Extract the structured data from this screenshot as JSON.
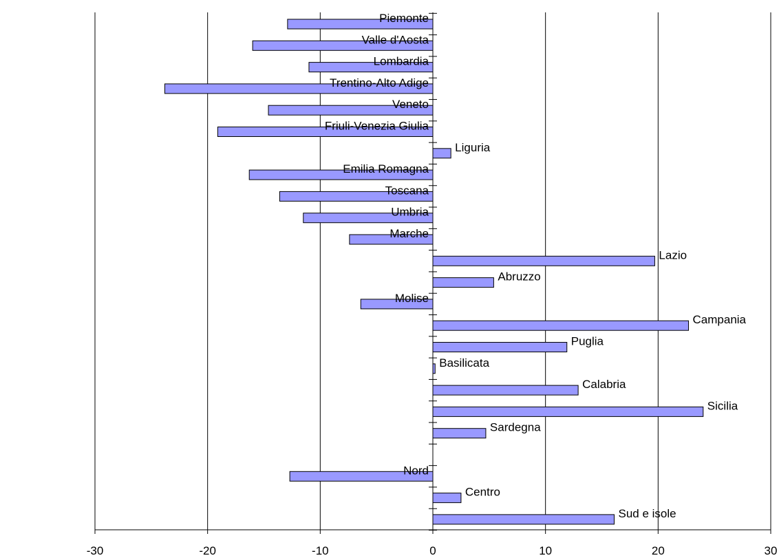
{
  "chart_data": {
    "type": "bar",
    "orientation": "horizontal",
    "title": "",
    "xlabel": "",
    "ylabel": "",
    "xlim": [
      -30,
      30
    ],
    "x_ticks": [
      -30,
      -20,
      -10,
      0,
      10,
      20,
      30
    ],
    "x_tick_labels": [
      "-30",
      "-20",
      "-10",
      "0",
      "10",
      "20",
      "30"
    ],
    "grid": "vertical major gridlines",
    "legend": "none",
    "bar_color": "#9999ff",
    "bar_edge_color": "#000000",
    "categories": [
      "Piemonte",
      "Valle d'Aosta",
      "Lombardia",
      "Trentino-Alto Adige",
      "Veneto",
      "Friuli-Venezia Giulia",
      "Liguria",
      "Emilia Romagna",
      "Toscana",
      "Umbria",
      "Marche",
      "Lazio",
      "Abruzzo",
      "Molise",
      "Campania",
      "Puglia",
      "Basilicata",
      "Calabria",
      "Sicilia",
      "Sardegna",
      "",
      "Nord",
      "Centro",
      "Sud e isole"
    ],
    "values": [
      -12.9,
      -16.0,
      -11.0,
      -23.8,
      -14.6,
      -19.1,
      1.6,
      -16.3,
      -13.6,
      -11.5,
      -7.4,
      19.7,
      5.4,
      -6.4,
      22.7,
      11.9,
      0.2,
      12.9,
      24.0,
      4.7,
      null,
      -12.7,
      2.5,
      16.1
    ]
  }
}
